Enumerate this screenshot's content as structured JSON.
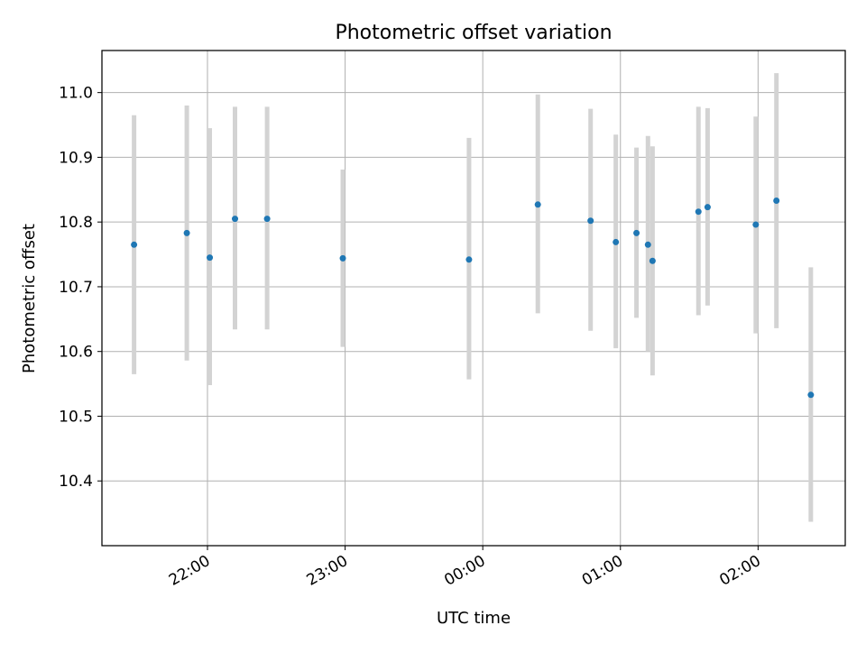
{
  "colors": {
    "marker": "#1f77b4",
    "errorbar": "#d3d3d3",
    "grid": "#b0b0b0",
    "axes": "#000000",
    "background": "#ffffff"
  },
  "chart_data": {
    "type": "scatter",
    "title": "Photometric offset variation",
    "xlabel": "UTC time",
    "ylabel": "Photometric offset",
    "grid": true,
    "legend": "none",
    "xlim": [
      "21:14",
      "02:38"
    ],
    "ylim": [
      10.3,
      11.065
    ],
    "x_ticks": [
      "22:00",
      "23:00",
      "00:00",
      "01:00",
      "02:00"
    ],
    "y_ticks": [
      10.4,
      10.5,
      10.6,
      10.7,
      10.8,
      10.9,
      11.0
    ],
    "y_tick_labels": [
      "10.4",
      "10.5",
      "10.6",
      "10.7",
      "10.8",
      "10.9",
      "11.0"
    ],
    "series": [
      {
        "x": [
          "21:28",
          "21:51",
          "22:01",
          "22:12",
          "22:26",
          "22:59",
          "23:54",
          "00:24",
          "00:47",
          "00:58",
          "01:07",
          "01:12",
          "01:14",
          "01:34",
          "01:38",
          "01:59",
          "02:08",
          "02:23"
        ],
        "y": [
          10.765,
          10.783,
          10.745,
          10.805,
          10.805,
          10.744,
          10.742,
          10.827,
          10.802,
          10.769,
          10.783,
          10.765,
          10.74,
          10.816,
          10.823,
          10.796,
          10.833,
          10.533
        ],
        "yerr_low": [
          10.565,
          10.586,
          10.548,
          10.634,
          10.634,
          10.607,
          10.557,
          10.659,
          10.632,
          10.605,
          10.652,
          10.6,
          10.563,
          10.656,
          10.671,
          10.628,
          10.636,
          10.337
        ],
        "yerr_high": [
          10.965,
          10.98,
          10.945,
          10.978,
          10.978,
          10.881,
          10.93,
          10.997,
          10.975,
          10.935,
          10.915,
          10.933,
          10.917,
          10.978,
          10.976,
          10.963,
          11.03,
          10.73
        ]
      }
    ]
  }
}
